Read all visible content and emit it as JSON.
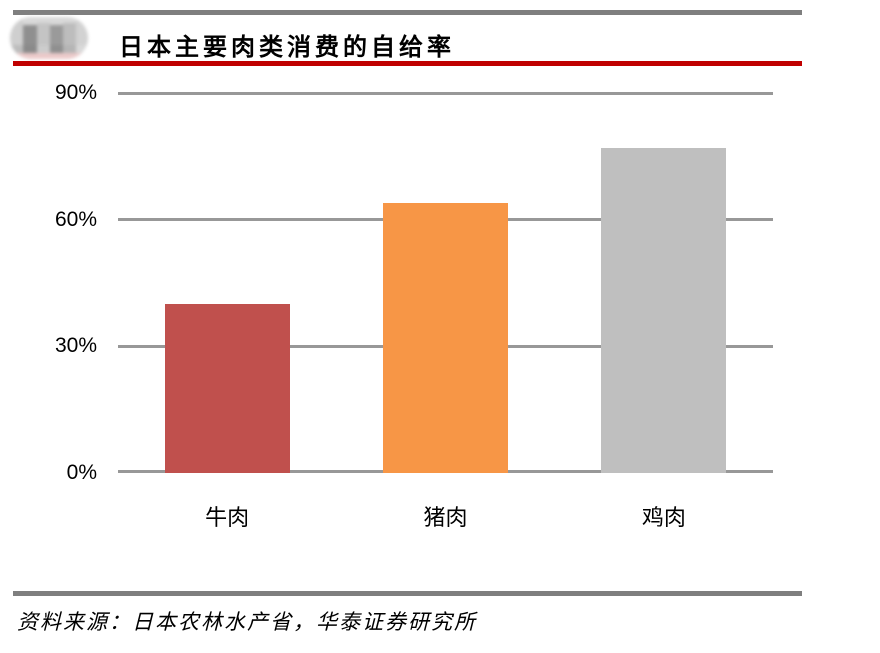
{
  "header": {
    "title": "日本主要肉类消费的自给率"
  },
  "chart_data": {
    "type": "bar",
    "title": "日本主要肉类消费的自给率",
    "categories": [
      "牛肉",
      "猪肉",
      "鸡肉"
    ],
    "values": [
      40,
      64,
      77
    ],
    "xlabel": "",
    "ylabel": "",
    "ylim": [
      0,
      90
    ],
    "yticks": [
      0,
      30,
      60,
      90
    ],
    "ytick_labels": [
      "0%",
      "30%",
      "60%",
      "90%"
    ],
    "bar_colors": [
      "#C0504D",
      "#F79646",
      "#BFBFBF"
    ],
    "gridline_color": "#989898",
    "grid": "horizontal",
    "legend_position": "none"
  },
  "footer": {
    "source_text": "资料来源：日本农林水产省，华泰证券研究所"
  },
  "colors": {
    "accent_red": "#C00000",
    "rule_gray": "#7F7F7F"
  }
}
